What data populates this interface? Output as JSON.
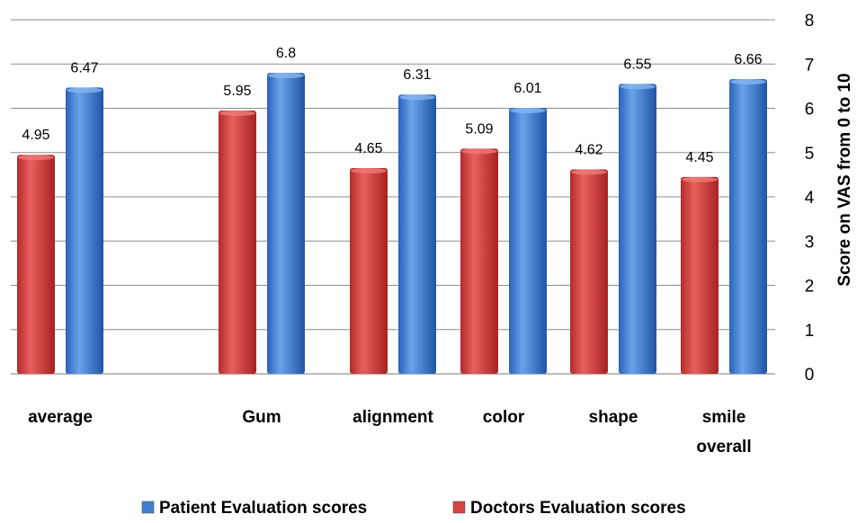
{
  "chart_data": {
    "type": "bar",
    "categories": [
      "average",
      "",
      "Gum",
      "alignment",
      "color",
      "shape",
      "smile overall"
    ],
    "series": [
      {
        "name": "Doctors Evaluation scores",
        "color": "#d9403f",
        "values": [
          4.95,
          null,
          5.95,
          4.65,
          5.09,
          4.62,
          4.45
        ]
      },
      {
        "name": "Patient Evaluation scores",
        "color": "#3f7fd4",
        "values": [
          6.47,
          null,
          6.8,
          6.31,
          6.01,
          6.55,
          6.66
        ]
      }
    ],
    "data_labels": [
      [
        "4.95",
        "",
        "5.95",
        "4.65",
        "5.09",
        "4.62",
        "4.45"
      ],
      [
        "6.47",
        "",
        "6.8",
        "6.31",
        "6.01",
        "6.55",
        "6.66"
      ]
    ],
    "ylabel": "Score on VAS from 0 to 10",
    "ylim": [
      0,
      8
    ],
    "yticks": [
      "0",
      "1",
      "2",
      "3",
      "4",
      "5",
      "6",
      "7",
      "8"
    ],
    "y_axis_position": "right",
    "grid": true,
    "legend": {
      "position": "bottom",
      "entries": [
        "Patient Evaluation scores",
        "Doctors Evaluation scores"
      ],
      "colors": [
        "#3f7fd4",
        "#d9403f"
      ]
    }
  }
}
